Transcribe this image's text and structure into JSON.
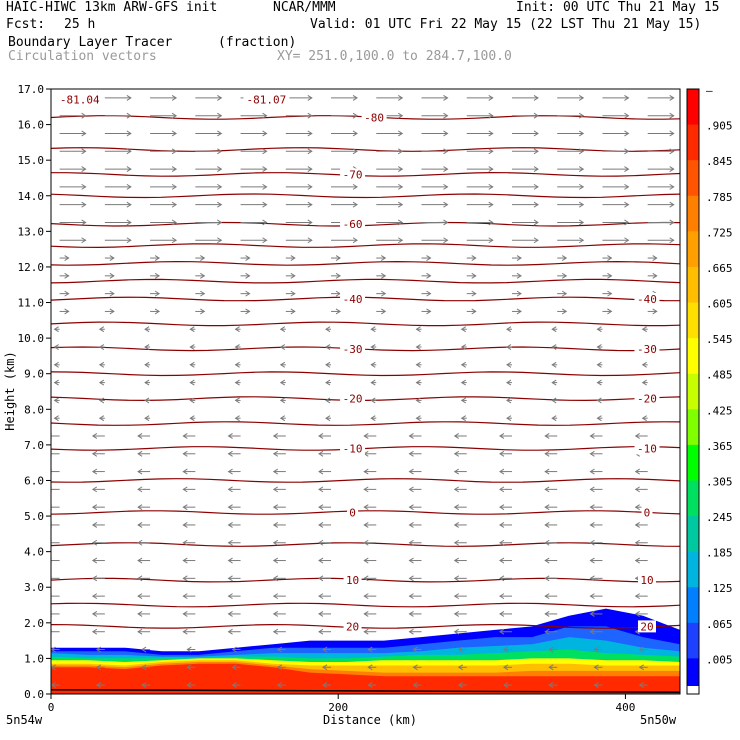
{
  "header": {
    "title": "HAIC-HIWC 13km ARW-GFS init",
    "center": "NCAR/MMM",
    "init": "Init: 00 UTC Thu 21 May 15",
    "fcst_label": "Fcst:",
    "fcst_value": "25 h",
    "valid": "Valid: 01 UTC Fri 22 May 15 (22 LST Thu 21 May 15)",
    "field": "Boundary Layer Tracer",
    "units": "(fraction)",
    "vectors": "Circulation vectors",
    "xy": "XY= 251.0,100.0 to 284.7,100.0"
  },
  "colors": {
    "contour": "#8b0000",
    "vector": "#7a7a7a",
    "axis": "#000000"
  },
  "chart_data": {
    "type": "heatmap",
    "xlabel": "Distance (km)",
    "ylabel": "Height (km)",
    "xlim": [
      0,
      438
    ],
    "ylim": [
      0,
      17
    ],
    "x_ticks": [
      {
        "v": 0,
        "label": "0"
      },
      {
        "v": 200,
        "label": "200"
      },
      {
        "v": 400,
        "label": "400"
      }
    ],
    "x_endpoint_labels": [
      "5n54w",
      "5n50w"
    ],
    "y_ticks": [
      "0.0",
      "1.0",
      "2.0",
      "3.0",
      "4.0",
      "5.0",
      "6.0",
      "7.0",
      "8.0",
      "9.0",
      "10.0",
      "11.0",
      "12.0",
      "13.0",
      "14.0",
      "15.0",
      "16.0",
      "17.0"
    ],
    "colorbar": {
      "labels": [
        "–",
        ".905",
        ".845",
        ".785",
        ".725",
        ".665",
        ".605",
        ".545",
        ".485",
        ".425",
        ".365",
        ".305",
        ".245",
        ".185",
        ".125",
        ".065",
        ".005"
      ],
      "colors": [
        "#ff0000",
        "#ff2a00",
        "#ff5500",
        "#ff7f00",
        "#ff9f00",
        "#ffbf00",
        "#ffdf00",
        "#ffff00",
        "#c8ff00",
        "#80ff00",
        "#00ff00",
        "#00e060",
        "#00c8a0",
        "#00b4e0",
        "#0080ff",
        "#1e40ff",
        "#0000ff"
      ]
    },
    "contours": [
      {
        "label": "-81.04",
        "y_km": 16.7
      },
      {
        "label": "-81.07",
        "y_km": 16.7
      },
      {
        "label": "-80",
        "y_km": 16.2
      },
      {
        "label": "-70",
        "y_km": 14.6
      },
      {
        "label": "-60",
        "y_km": 13.2
      },
      {
        "label": "-40",
        "y_km": 11.1
      },
      {
        "label": "-30",
        "y_km": 9.7
      },
      {
        "label": "-20",
        "y_km": 8.3
      },
      {
        "label": "-10",
        "y_km": 6.9
      },
      {
        "label": "0",
        "y_km": 5.1
      },
      {
        "label": "10",
        "y_km": 3.2
      },
      {
        "label": "20",
        "y_km": 1.9
      }
    ],
    "contour_levels_km": [
      16.2,
      15.3,
      14.6,
      14.0,
      13.2,
      12.6,
      12.1,
      11.6,
      11.1,
      10.4,
      9.7,
      9.0,
      8.3,
      7.6,
      6.9,
      6.0,
      5.1,
      4.2,
      3.2,
      2.5,
      1.9
    ],
    "tracer_layers": [
      {
        "fraction": 0.005,
        "color": "#0000ff",
        "top_km": [
          1.3,
          1.3,
          1.3,
          1.2,
          1.2,
          1.3,
          1.4,
          1.5,
          1.5,
          1.5,
          1.6,
          1.7,
          1.8,
          1.9,
          2.2,
          2.4,
          2.2,
          1.8
        ]
      },
      {
        "fraction": 0.065,
        "color": "#1e64ff",
        "top_km": [
          1.2,
          1.2,
          1.2,
          1.1,
          1.1,
          1.2,
          1.3,
          1.3,
          1.3,
          1.3,
          1.4,
          1.5,
          1.6,
          1.6,
          1.9,
          1.9,
          1.6,
          1.4
        ]
      },
      {
        "fraction": 0.185,
        "color": "#00b4e0",
        "top_km": [
          1.15,
          1.1,
          1.1,
          1.05,
          1.05,
          1.1,
          1.15,
          1.15,
          1.15,
          1.15,
          1.2,
          1.3,
          1.35,
          1.4,
          1.6,
          1.5,
          1.3,
          1.2
        ]
      },
      {
        "fraction": 0.305,
        "color": "#00e060",
        "top_km": [
          1.05,
          1.0,
          1.0,
          1.0,
          1.0,
          1.05,
          1.05,
          1.0,
          1.0,
          1.05,
          1.1,
          1.1,
          1.15,
          1.2,
          1.25,
          1.15,
          1.1,
          1.05
        ]
      },
      {
        "fraction": 0.545,
        "color": "#ffff00",
        "top_km": [
          0.95,
          0.95,
          0.9,
          0.95,
          1.0,
          1.0,
          0.95,
          0.9,
          0.9,
          0.95,
          0.95,
          0.95,
          0.95,
          1.0,
          1.0,
          0.95,
          0.95,
          0.9
        ]
      },
      {
        "fraction": 0.725,
        "color": "#ffbf00",
        "top_km": [
          0.85,
          0.85,
          0.8,
          0.9,
          0.95,
          0.95,
          0.85,
          0.8,
          0.8,
          0.8,
          0.8,
          0.8,
          0.8,
          0.85,
          0.85,
          0.8,
          0.8,
          0.8
        ]
      },
      {
        "fraction": 0.845,
        "color": "#ff7f00",
        "top_km": [
          0.8,
          0.8,
          0.75,
          0.85,
          0.9,
          0.9,
          0.8,
          0.7,
          0.65,
          0.6,
          0.6,
          0.6,
          0.6,
          0.65,
          0.65,
          0.65,
          0.65,
          0.65
        ]
      },
      {
        "fraction": 0.905,
        "color": "#ff2a00",
        "top_km": [
          0.75,
          0.75,
          0.7,
          0.8,
          0.85,
          0.85,
          0.75,
          0.6,
          0.55,
          0.5,
          0.5,
          0.5,
          0.5,
          0.5,
          0.5,
          0.5,
          0.5,
          0.5
        ]
      }
    ]
  }
}
